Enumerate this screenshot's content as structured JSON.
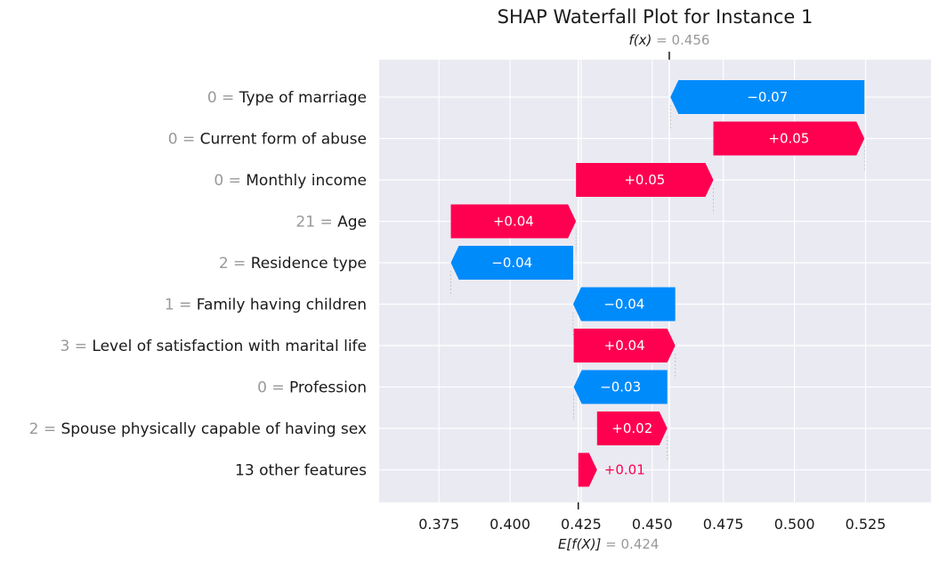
{
  "chart_data": {
    "type": "bar",
    "subtype": "shap-waterfall",
    "title": "SHAP Waterfall Plot for Instance 1",
    "fx_label": "f(x)",
    "fx_value": "0.456",
    "base_label": "E[f(X)]",
    "base_value": "0.424",
    "fx": 0.456,
    "base": 0.424,
    "xlim": [
      0.354,
      0.548
    ],
    "xticks": [
      0.375,
      0.4,
      0.425,
      0.45,
      0.475,
      0.5,
      0.525
    ],
    "xtick_labels": [
      "0.375",
      "0.400",
      "0.425",
      "0.450",
      "0.475",
      "0.500",
      "0.525"
    ],
    "colors": {
      "positive": "#ff0051",
      "negative": "#008bfb",
      "background": "#eaeaf2",
      "grid": "#ffffff"
    },
    "features": [
      {
        "value": "0",
        "name": "Type of marriage",
        "start": 0.5246,
        "end": 0.4564,
        "label": "−0.07"
      },
      {
        "value": "0",
        "name": "Current form of abuse",
        "start": 0.4715,
        "end": 0.5246,
        "label": "+0.05"
      },
      {
        "value": "0",
        "name": "Monthly income",
        "start": 0.4232,
        "end": 0.4715,
        "label": "+0.05"
      },
      {
        "value": "21",
        "name": "Age",
        "start": 0.3792,
        "end": 0.4232,
        "label": "+0.04"
      },
      {
        "value": "2",
        "name": "Residence type",
        "start": 0.4222,
        "end": 0.3792,
        "label": "−0.04"
      },
      {
        "value": "1",
        "name": "Family having children",
        "start": 0.4581,
        "end": 0.4222,
        "label": "−0.04"
      },
      {
        "value": "3",
        "name": "Level of satisfaction with marital life",
        "start": 0.4224,
        "end": 0.4581,
        "label": "+0.04"
      },
      {
        "value": "0",
        "name": "Profession",
        "start": 0.4553,
        "end": 0.4224,
        "label": "−0.03"
      },
      {
        "value": "2",
        "name": "Spouse physically capable of having sex",
        "start": 0.4306,
        "end": 0.4553,
        "label": "+0.02"
      },
      {
        "value": "",
        "name": "13 other features",
        "start": 0.424,
        "end": 0.4306,
        "label": "+0.01"
      }
    ]
  }
}
